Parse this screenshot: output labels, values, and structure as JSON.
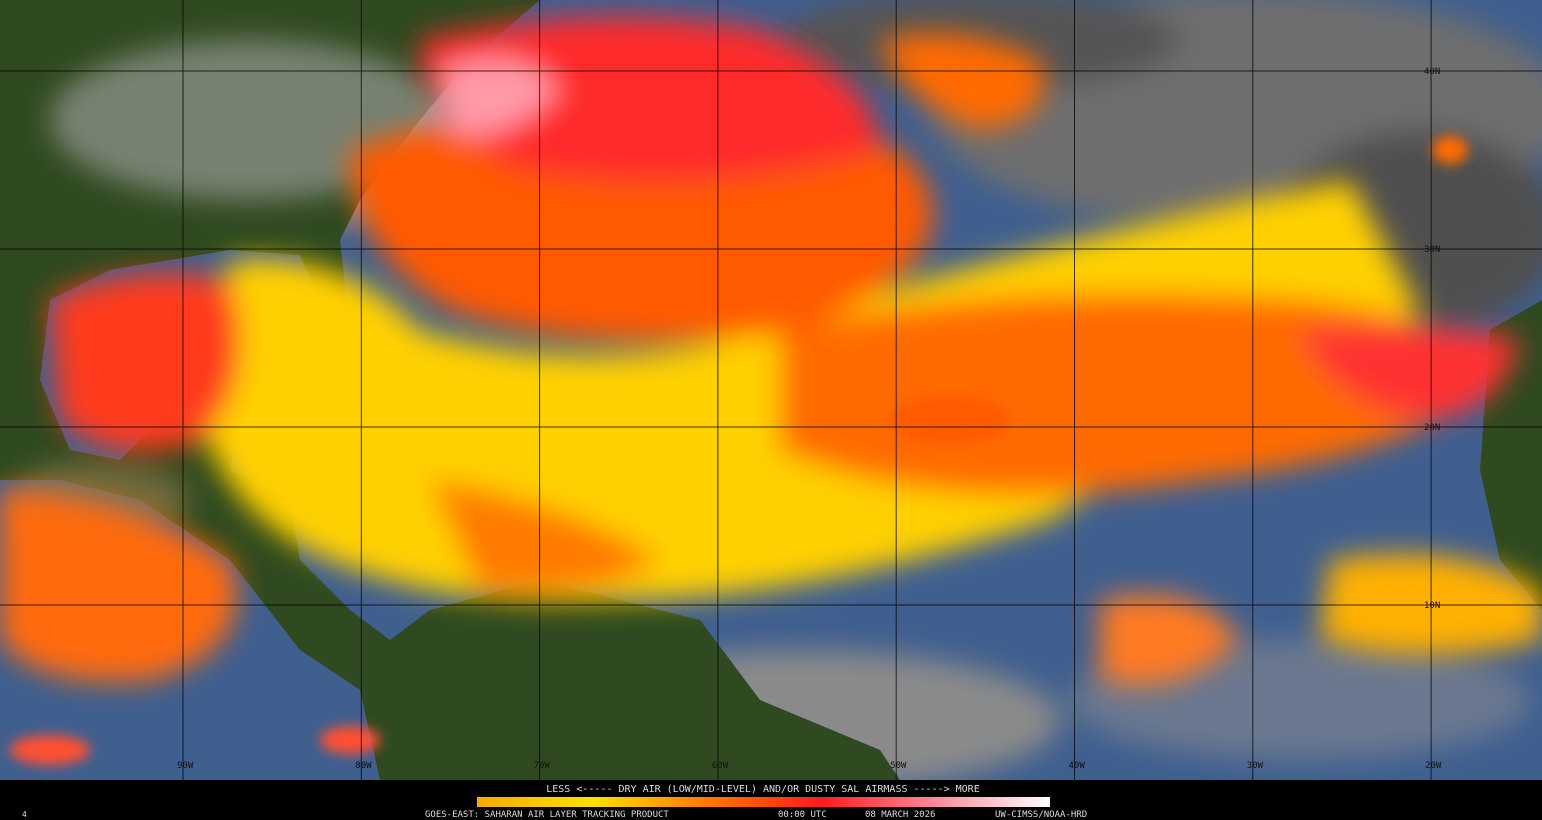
{
  "map": {
    "lat_labels": [
      "40N",
      "30N",
      "20N",
      "10N"
    ],
    "lon_labels": [
      "90W",
      "80W",
      "70W",
      "60W",
      "50W",
      "40W",
      "30W",
      "20W"
    ],
    "legend_text": "LESS <----- DRY AIR (LOW/MID-LEVEL) AND/OR DUSTY SAL AIRMASS -----> MORE",
    "corner_mark": "4",
    "footer": {
      "product": "GOES-EAST: SAHARAN AIR LAYER TRACKING PRODUCT",
      "time": "00:00 UTC",
      "date": "08 MARCH 2026",
      "source": "UW-CIMSS/NOAA-HRD"
    }
  }
}
